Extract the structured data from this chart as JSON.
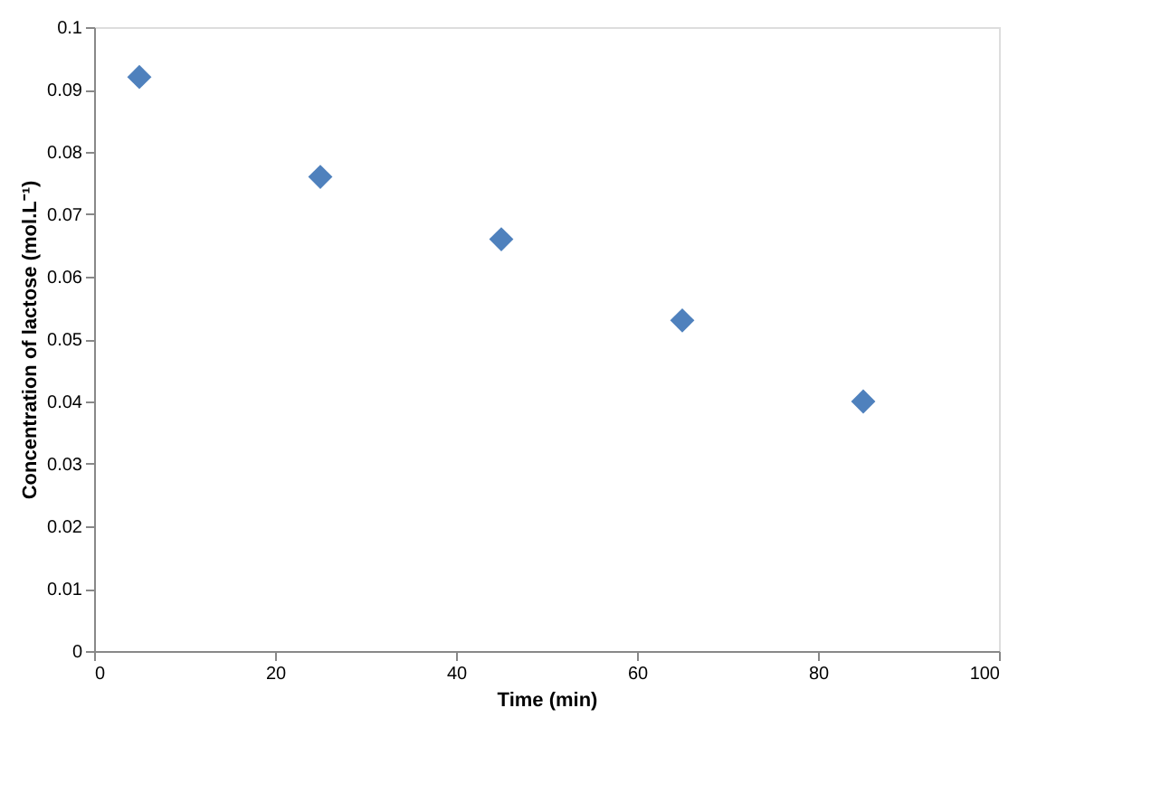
{
  "chart_data": {
    "type": "scatter",
    "xlabel": "Time (min)",
    "ylabel": "Concentration of lactose (mol.L⁻¹)",
    "x": [
      5,
      25,
      45,
      65,
      85
    ],
    "series": [
      {
        "color": "#4f81bd",
        "values": [
          0.092,
          0.076,
          0.066,
          0.053,
          0.04
        ]
      }
    ],
    "xlim": [
      0,
      100
    ],
    "xticks": [
      0,
      20,
      40,
      60,
      80,
      100
    ],
    "ylim": [
      0,
      0.1
    ],
    "yticks": [
      0,
      0.01,
      0.02,
      0.03,
      0.04,
      0.05,
      0.06,
      0.07,
      0.08,
      0.09,
      0.1
    ],
    "grid": false,
    "legend": false,
    "marker": "diamond"
  }
}
